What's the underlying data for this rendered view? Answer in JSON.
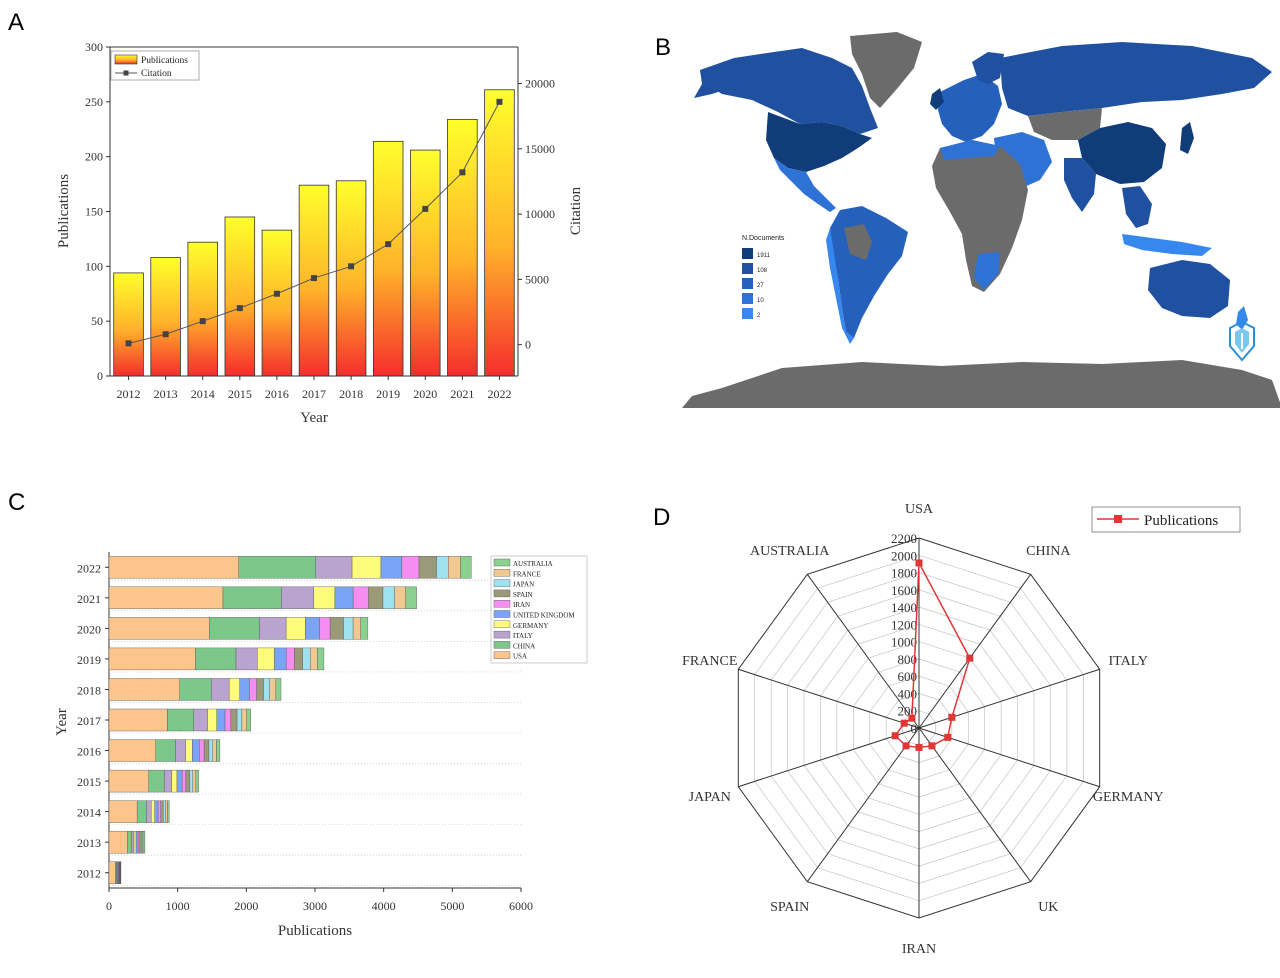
{
  "panels": [
    {
      "letter": "A"
    },
    {
      "letter": "B"
    },
    {
      "letter": "C"
    },
    {
      "letter": "D"
    }
  ],
  "colors": {
    "bar_top": "#ffff2b",
    "bar_bottom": "#f52d2d",
    "citation_line": "#555555",
    "map_ocean": "#ffffff",
    "map_nodata": "#6b6b6b",
    "map_scale": [
      "#103d7a",
      "#1f51a0",
      "#2560bd",
      "#2f72d6",
      "#3688ee"
    ],
    "radar_line": "#e03636",
    "stack_colors": [
      "#fbc58c",
      "#7cc88a",
      "#b9a3cf",
      "#fffb7a",
      "#7aa4f5",
      "#f58ef0",
      "#9b9a78",
      "#9fe1ef",
      "#f1c990",
      "#8ad08e"
    ]
  },
  "chart_data": [
    {
      "id": "A",
      "type": "bar",
      "categories": [
        "2012",
        "2013",
        "2014",
        "2015",
        "2016",
        "2017",
        "2018",
        "2019",
        "2020",
        "2021",
        "2022"
      ],
      "series": [
        {
          "name": "Publications",
          "type": "bar",
          "values": [
            94,
            108,
            122,
            145,
            133,
            174,
            178,
            214,
            206,
            234,
            261
          ]
        },
        {
          "name": "Citation",
          "type": "line",
          "axis": "right",
          "values": [
            100,
            800,
            1800,
            2800,
            3900,
            5100,
            6000,
            7700,
            10400,
            13200,
            18600
          ]
        }
      ],
      "xlabel": "Year",
      "ylabel": "Publications",
      "y2label": "Citation",
      "ylim": [
        0,
        300
      ],
      "y2lim": [
        -2400,
        22800
      ],
      "yticks": [
        "0",
        "50",
        "100",
        "150",
        "200",
        "250",
        "300"
      ],
      "y2ticks": [
        "0",
        "5000",
        "10000",
        "15000",
        "20000"
      ],
      "legend": "top-left"
    },
    {
      "id": "B",
      "type": "heatmap",
      "map": "world",
      "legend_title": "N.Documents",
      "legend_values": [
        "1911",
        "108",
        "27",
        "10",
        "2"
      ],
      "legend": "bottom-left"
    },
    {
      "id": "C",
      "type": "bar",
      "orientation": "horizontal",
      "stacked": true,
      "categories": [
        "2012",
        "2013",
        "2014",
        "2015",
        "2016",
        "2017",
        "2018",
        "2019",
        "2020",
        "2021",
        "2022"
      ],
      "series": [
        {
          "name": "USA",
          "values": [
            94,
            266,
            410,
            580,
            680,
            850,
            1030,
            1260,
            1460,
            1660,
            1890
          ]
        },
        {
          "name": "CHINA",
          "values": [
            15,
            60,
            135,
            225,
            290,
            385,
            460,
            590,
            730,
            850,
            1120
          ]
        },
        {
          "name": "ITALY",
          "values": [
            12,
            38,
            70,
            110,
            145,
            200,
            260,
            310,
            390,
            470,
            530
          ]
        },
        {
          "name": "GERMANY",
          "values": [
            10,
            30,
            50,
            75,
            100,
            135,
            155,
            250,
            280,
            310,
            420
          ]
        },
        {
          "name": "UNITED KINGDOM",
          "values": [
            10,
            30,
            50,
            75,
            100,
            120,
            140,
            170,
            205,
            265,
            305
          ]
        },
        {
          "name": "IRAN",
          "values": [
            8,
            24,
            38,
            55,
            70,
            85,
            105,
            120,
            155,
            225,
            250
          ]
        },
        {
          "name": "SPAIN",
          "values": [
            8,
            24,
            38,
            55,
            70,
            90,
            100,
            120,
            195,
            210,
            255
          ]
        },
        {
          "name": "JAPAN",
          "values": [
            6,
            18,
            30,
            45,
            55,
            70,
            90,
            110,
            140,
            170,
            170
          ]
        },
        {
          "name": "FRANCE",
          "values": [
            6,
            18,
            30,
            45,
            55,
            70,
            90,
            105,
            110,
            160,
            180
          ]
        },
        {
          "name": "AUSTRALIA",
          "values": [
            5,
            15,
            25,
            40,
            50,
            60,
            75,
            95,
            105,
            160,
            155
          ]
        }
      ],
      "xlabel": "Publications",
      "ylabel": "Year",
      "xlim": [
        0,
        6000
      ],
      "xticks": [
        "0",
        "1000",
        "2000",
        "3000",
        "4000",
        "5000",
        "6000"
      ],
      "legend_order": [
        "AUSTRALIA",
        "FRANCE",
        "JAPAN",
        "SPAIN",
        "IRAN",
        "UNITED KINGDOM",
        "GERMANY",
        "ITALY",
        "CHINA",
        "USA"
      ],
      "legend": "top-right"
    },
    {
      "id": "D",
      "type": "radar",
      "categories": [
        "USA",
        "CHINA",
        "ITALY",
        "GERMANY",
        "UK",
        "IRAN",
        "SPAIN",
        "JAPAN",
        "FRANCE",
        "AUSTRALIA"
      ],
      "series": [
        {
          "name": "Publications",
          "values": [
            1911,
            1000,
            400,
            350,
            255,
            225,
            255,
            290,
            180,
            140
          ]
        }
      ],
      "rlim": [
        0,
        2200
      ],
      "rticks": [
        "0",
        "200",
        "400",
        "600",
        "800",
        "1000",
        "1200",
        "1400",
        "1600",
        "1800",
        "2000",
        "2200"
      ],
      "legend": "top-right"
    }
  ]
}
